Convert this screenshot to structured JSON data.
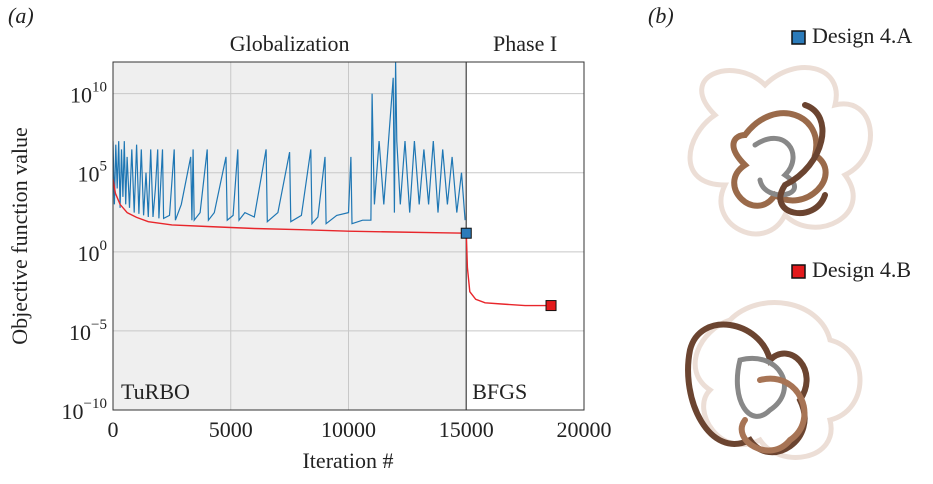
{
  "chart_data": {
    "type": "line",
    "panel_label": "(a)",
    "xlabel": "Iteration #",
    "ylabel": "Objective function value",
    "xlim": [
      0,
      20000
    ],
    "xticks": [
      0,
      5000,
      10000,
      15000,
      20000
    ],
    "ylim": [
      1e-10,
      1000000000000.0
    ],
    "yscale": "log",
    "yticks": [
      {
        "value": 1e-10,
        "label": "10^−10"
      },
      {
        "value": 1e-05,
        "label": "10^−5"
      },
      {
        "value": 1,
        "label": "10^0"
      },
      {
        "value": 100000,
        "label": "10^5"
      },
      {
        "value": 10000000000,
        "label": "10^10"
      }
    ],
    "grid": true,
    "phase_boundary": 15000,
    "annotations": {
      "region_left": "Globalization",
      "region_right": "Phase I",
      "method_left": "TuRBO",
      "method_right": "BFGS"
    },
    "series": [
      {
        "color": "#1f77b4",
        "x": [
          0,
          60,
          120,
          180,
          240,
          300,
          360,
          420,
          480,
          540,
          600,
          700,
          800,
          900,
          1000,
          1100,
          1200,
          1300,
          1400,
          1500,
          1600,
          1700,
          1800,
          1900,
          1950,
          2100,
          2150,
          2400,
          2600,
          2650,
          2900,
          3300,
          3350,
          3400,
          3450,
          3700,
          4000,
          4050,
          4300,
          4800,
          4850,
          5100,
          5300,
          5350,
          5600,
          6000,
          6500,
          6550,
          7000,
          7500,
          7550,
          8000,
          8400,
          8450,
          8700,
          9000,
          9050,
          9500,
          10000,
          10100,
          10150,
          10600,
          10950,
          11000,
          11050,
          11100,
          11300,
          11500,
          11700,
          11900,
          11950,
          12000,
          12050,
          12200,
          12400,
          12600,
          12800,
          13000,
          13200,
          13400,
          13600,
          13800,
          14000,
          14200,
          14400,
          14600,
          14800,
          14950
        ],
        "values": [
          10000000.0,
          1000.0,
          6000000.0,
          10000.0,
          10000000.0,
          600.0,
          3000000.0,
          3000.0,
          10000000.0,
          1000.0,
          1000000.0,
          600.0,
          3000000.0,
          300.0,
          6000000.0,
          250.0,
          3000000.0,
          200.0,
          100000.0,
          160.0,
          3000000.0,
          160.0,
          10000.0,
          3000000.0,
          130.0,
          3000000.0,
          130.0,
          200.0,
          3000000.0,
          100.0,
          1000.0,
          1000000.0,
          100.0,
          3000000.0,
          100.0,
          300.0,
          3000000.0,
          100.0,
          300.0,
          1000000.0,
          100.0,
          200.0,
          3000000.0,
          100.0,
          300.0,
          160.0,
          3000000.0,
          80,
          300.0,
          2000000.0,
          80,
          200.0,
          3000000.0,
          60,
          160.0,
          1000000.0,
          60,
          200.0,
          300.0,
          1000000.0,
          60,
          100.0,
          100.0,
          10000000000.0,
          3000000.0,
          1000.0,
          10000000.0,
          1000.0,
          10000000.0,
          100000000000.0,
          300.0,
          1000000000000.0,
          10000000.0,
          1000.0,
          10000000.0,
          300.0,
          10000000.0,
          1000.0,
          3000000.0,
          1000.0,
          10000000.0,
          300.0,
          3000000.0,
          1000.0,
          1000000.0,
          300.0,
          100000.0,
          100.0
        ]
      },
      {
        "color": "#e8262b",
        "x": [
          0,
          100,
          300,
          600,
          1000,
          1500,
          2500,
          4000,
          6000,
          8000,
          10000,
          12000,
          14000,
          15000,
          15050,
          15150,
          15400,
          15800,
          16500,
          17500,
          18600
        ],
        "values": [
          40000.0,
          5000.0,
          1000.0,
          300.0,
          150.0,
          80,
          50,
          40,
          30,
          25,
          20,
          18,
          16,
          15,
          0.1,
          0.003,
          0.001,
          0.0006,
          0.0005,
          0.0004,
          0.0004
        ]
      }
    ],
    "points": [
      {
        "name": "Design 4.A",
        "color": "#2b7bba",
        "x": 15000,
        "y": 15
      },
      {
        "name": "Design 4.B",
        "color": "#e31a1c",
        "x": 18600,
        "y": 0.0004
      }
    ],
    "panel_b_label": "(b)"
  }
}
